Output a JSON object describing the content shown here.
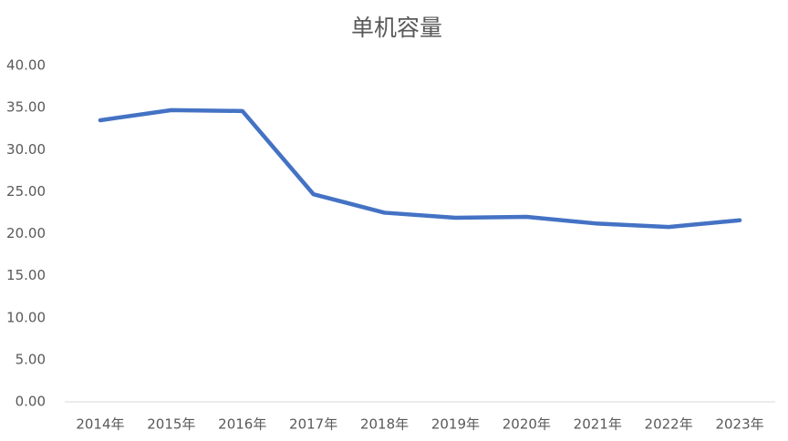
{
  "chart_data": {
    "type": "line",
    "title": "单机容量",
    "categories": [
      "2014年",
      "2015年",
      "2016年",
      "2017年",
      "2018年",
      "2019年",
      "2020年",
      "2021年",
      "2022年",
      "2023年"
    ],
    "values": [
      33.5,
      34.7,
      34.6,
      24.7,
      22.5,
      21.9,
      22.0,
      21.2,
      20.8,
      21.6
    ],
    "color": "#4472c4",
    "ylim": [
      0,
      40
    ],
    "yticks": [
      {
        "value": 0,
        "label": "0.00"
      },
      {
        "value": 5,
        "label": "5.00"
      },
      {
        "value": 10,
        "label": "10.00"
      },
      {
        "value": 15,
        "label": "15.00"
      },
      {
        "value": 20,
        "label": "20.00"
      },
      {
        "value": 25,
        "label": "25.00"
      },
      {
        "value": 30,
        "label": "30.00"
      },
      {
        "value": 35,
        "label": "35.00"
      },
      {
        "value": 40,
        "label": "40.00"
      }
    ],
    "grid": false
  }
}
